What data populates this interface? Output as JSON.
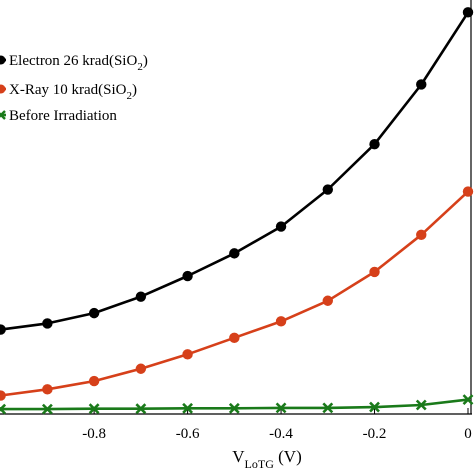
{
  "chart_data": {
    "type": "line",
    "xlabel_main": "V",
    "xlabel_sub": "LoTG",
    "xlabel_unit": " (V)",
    "xlim": [
      -0.98,
      0.0
    ],
    "ylim": [
      0,
      10
    ],
    "x_ticks": [
      -0.8,
      -0.6,
      -0.4,
      -0.2,
      0
    ],
    "x_tick_labels": [
      "-0.8",
      "-0.6",
      "-0.4",
      "-0.2",
      "0"
    ],
    "x": [
      -1.0,
      -0.9,
      -0.8,
      -0.7,
      -0.6,
      -0.5,
      -0.4,
      -0.3,
      -0.2,
      -0.1,
      0.0
    ],
    "legend_position": "top-left",
    "series": [
      {
        "name": "Electron 26 krad(SiO2)",
        "label_main": "Electron 26 krad(SiO",
        "label_sub": "2",
        "label_end": ")",
        "color": "#000000",
        "marker": "circle",
        "values": [
          2.0,
          2.15,
          2.4,
          2.8,
          3.3,
          3.85,
          4.5,
          5.4,
          6.5,
          7.95,
          9.7
        ]
      },
      {
        "name": "X-Ray 10 krad(SiO2)",
        "label_main": "X-Ray 10 krad(SiO",
        "label_sub": "2",
        "label_end": ")",
        "color": "#d6401a",
        "marker": "circle",
        "values": [
          0.4,
          0.55,
          0.75,
          1.05,
          1.4,
          1.8,
          2.2,
          2.7,
          3.4,
          4.3,
          5.35
        ]
      },
      {
        "name": "Before Irradiation",
        "label_main": "Before Irradiation",
        "label_sub": "",
        "label_end": "",
        "color": "#1a7a1a",
        "marker": "x",
        "values": [
          0.07,
          0.07,
          0.08,
          0.08,
          0.09,
          0.09,
          0.1,
          0.1,
          0.12,
          0.17,
          0.3
        ]
      }
    ]
  }
}
